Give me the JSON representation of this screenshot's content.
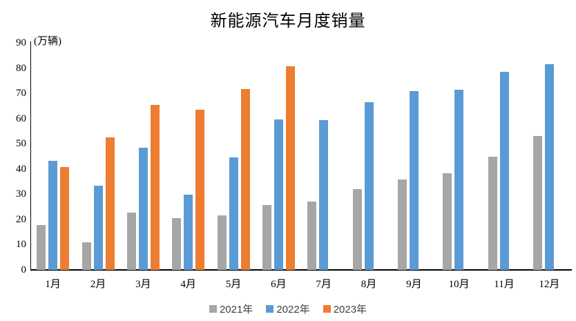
{
  "chart": {
    "title": "新能源汽车月度销量",
    "unit_label": "(万辆)"
  },
  "chart_data": {
    "type": "bar",
    "title": "新能源汽车月度销量",
    "xlabel": "",
    "ylabel": "(万辆)",
    "categories": [
      "1月",
      "2月",
      "3月",
      "4月",
      "5月",
      "6月",
      "7月",
      "8月",
      "9月",
      "10月",
      "11月",
      "12月"
    ],
    "series": [
      {
        "name": "2021年",
        "color": "#A6A6A6",
        "values": [
          17.9,
          11.0,
          22.6,
          20.6,
          21.7,
          25.6,
          27.1,
          32.1,
          35.7,
          38.3,
          45.0,
          53.1
        ]
      },
      {
        "name": "2022年",
        "color": "#5B9BD5",
        "values": [
          43.1,
          33.4,
          48.4,
          29.9,
          44.7,
          59.6,
          59.3,
          66.6,
          70.8,
          71.4,
          78.6,
          81.4
        ]
      },
      {
        "name": "2023年",
        "color": "#ED7D31",
        "values": [
          40.8,
          52.5,
          65.3,
          63.6,
          71.7,
          80.6,
          null,
          null,
          null,
          null,
          null,
          null
        ]
      }
    ],
    "ylim": [
      0,
      90
    ],
    "y_ticks": [
      0,
      10,
      20,
      30,
      40,
      50,
      60,
      70,
      80,
      90
    ],
    "grid": false,
    "legend_position": "bottom",
    "axis_color": "#000000",
    "text_color": "#000000",
    "legend_text_color": "#404040",
    "background_color": "#FFFFFF"
  }
}
